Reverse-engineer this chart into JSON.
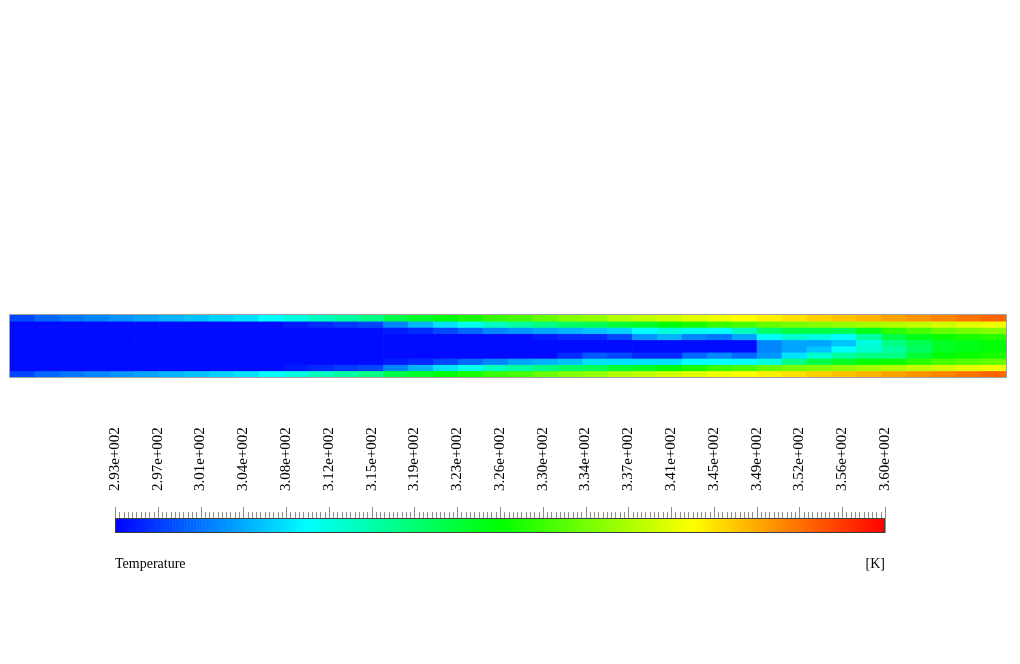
{
  "chart_data": {
    "type": "heatmap",
    "categories": [
      null,
      null,
      null,
      null,
      null,
      null,
      null,
      null,
      null,
      null,
      null,
      null,
      null,
      null,
      null,
      null,
      null,
      null,
      null,
      null,
      null,
      null,
      null,
      null,
      null,
      null,
      null,
      null,
      null,
      null,
      null,
      null,
      null,
      null,
      null,
      null,
      null,
      null,
      null,
      null
    ],
    "y_categories": [
      null,
      null,
      null,
      null,
      null,
      null,
      null,
      null,
      null,
      null
    ],
    "cells": [
      [
        298,
        300,
        301,
        302,
        303,
        304,
        305,
        306,
        307,
        308,
        310,
        312,
        314,
        316,
        318,
        322,
        324,
        326,
        328,
        330,
        331,
        333,
        335,
        336,
        338,
        339,
        340,
        341,
        342,
        343,
        344,
        345,
        346,
        347,
        348,
        349,
        350,
        351,
        352,
        353
      ],
      [
        294,
        294,
        294,
        294,
        294,
        294,
        294,
        294,
        294,
        294,
        294,
        295,
        296,
        297,
        298,
        302,
        305,
        308,
        311,
        314,
        316,
        318,
        320,
        321,
        323,
        324,
        326,
        328,
        330,
        331,
        333,
        334,
        335,
        336,
        337,
        338,
        339,
        340,
        341,
        342
      ],
      [
        294,
        294,
        294,
        294,
        294,
        294,
        294,
        294,
        294,
        294,
        294,
        294,
        294,
        294,
        294,
        295,
        296,
        298,
        300,
        302,
        303,
        304,
        305,
        306,
        307,
        310,
        312,
        311,
        310,
        314,
        320,
        322,
        322,
        321,
        325,
        329,
        331,
        333,
        334,
        335
      ],
      [
        294,
        294,
        294,
        294,
        294,
        294,
        294,
        294,
        294,
        294,
        294,
        294,
        294,
        294,
        294,
        294,
        294,
        294,
        294,
        294,
        294,
        295,
        296,
        296,
        298,
        303,
        305,
        302,
        301,
        304,
        310,
        313,
        312,
        310,
        316,
        322,
        325,
        327,
        328,
        329
      ],
      [
        294,
        294,
        294,
        294,
        294,
        294,
        294,
        294,
        294,
        294,
        294,
        294,
        294,
        294,
        294,
        294,
        294,
        294,
        294,
        294,
        294,
        294,
        294,
        294,
        294,
        294,
        294,
        294,
        294,
        294,
        302,
        304,
        304,
        306,
        312,
        318,
        321,
        324,
        325,
        326
      ],
      [
        294,
        294,
        294,
        294,
        294,
        294,
        294,
        294,
        294,
        294,
        294,
        294,
        294,
        294,
        294,
        294,
        294,
        294,
        294,
        294,
        294,
        294,
        294,
        294,
        294,
        294,
        294,
        294,
        294,
        294,
        302,
        304,
        306,
        310,
        313,
        316,
        320,
        324,
        325,
        326
      ],
      [
        294,
        294,
        294,
        294,
        294,
        294,
        294,
        294,
        294,
        294,
        294,
        294,
        294,
        294,
        294,
        294,
        294,
        294,
        294,
        294,
        294,
        294,
        296,
        299,
        298,
        296,
        296,
        300,
        302,
        300,
        303,
        308,
        313,
        316,
        318,
        318,
        323,
        326,
        327,
        328
      ],
      [
        294,
        294,
        294,
        294,
        294,
        294,
        294,
        294,
        294,
        294,
        294,
        294,
        294,
        294,
        294,
        295,
        296,
        298,
        300,
        302,
        304,
        305,
        306,
        308,
        308,
        308,
        308,
        310,
        310,
        310,
        312,
        318,
        322,
        324,
        326,
        327,
        329,
        331,
        332,
        333
      ],
      [
        294,
        294,
        294,
        294,
        294,
        294,
        294,
        294,
        294,
        294,
        294,
        295,
        296,
        297,
        298,
        302,
        305,
        308,
        311,
        314,
        316,
        318,
        320,
        321,
        323,
        324,
        326,
        328,
        330,
        331,
        333,
        334,
        335,
        336,
        337,
        338,
        339,
        340,
        341,
        342
      ],
      [
        298,
        300,
        301,
        302,
        303,
        304,
        305,
        306,
        307,
        308,
        310,
        312,
        314,
        316,
        318,
        322,
        324,
        326,
        328,
        330,
        331,
        333,
        335,
        336,
        338,
        339,
        340,
        341,
        342,
        343,
        344,
        345,
        346,
        347,
        348,
        349,
        350,
        351,
        352,
        353
      ]
    ],
    "clim": [
      293.3,
      359.54
    ],
    "cticks": [
      {
        "value": 293.3,
        "label": "2.93e+002"
      },
      {
        "value": 293.668,
        "label": null
      },
      {
        "value": 294.036,
        "label": null
      },
      {
        "value": 294.404,
        "label": null
      },
      {
        "value": 294.772,
        "label": null
      },
      {
        "value": 295.14,
        "label": null
      },
      {
        "value": 295.508,
        "label": null
      },
      {
        "value": 295.876,
        "label": null
      },
      {
        "value": 296.244,
        "label": null
      },
      {
        "value": 296.612,
        "label": null
      },
      {
        "value": 296.98,
        "label": "2.97e+002"
      },
      {
        "value": 297.348,
        "label": null
      },
      {
        "value": 297.716,
        "label": null
      },
      {
        "value": 298.084,
        "label": null
      },
      {
        "value": 298.452,
        "label": null
      },
      {
        "value": 298.82,
        "label": null
      },
      {
        "value": 299.188,
        "label": null
      },
      {
        "value": 299.556,
        "label": null
      },
      {
        "value": 299.924,
        "label": null
      },
      {
        "value": 300.292,
        "label": null
      },
      {
        "value": 300.66,
        "label": "3.01e+002"
      },
      {
        "value": 301.028,
        "label": null
      },
      {
        "value": 301.396,
        "label": null
      },
      {
        "value": 301.764,
        "label": null
      },
      {
        "value": 302.132,
        "label": null
      },
      {
        "value": 302.5,
        "label": null
      },
      {
        "value": 302.868,
        "label": null
      },
      {
        "value": 303.236,
        "label": null
      },
      {
        "value": 303.604,
        "label": null
      },
      {
        "value": 303.972,
        "label": null
      },
      {
        "value": 304.34,
        "label": "3.04e+002"
      },
      {
        "value": 304.708,
        "label": null
      },
      {
        "value": 305.076,
        "label": null
      },
      {
        "value": 305.444,
        "label": null
      },
      {
        "value": 305.812,
        "label": null
      },
      {
        "value": 306.18,
        "label": null
      },
      {
        "value": 306.548,
        "label": null
      },
      {
        "value": 306.916,
        "label": null
      },
      {
        "value": 307.284,
        "label": null
      },
      {
        "value": 307.652,
        "label": null
      },
      {
        "value": 308.02,
        "label": "3.08e+002"
      },
      {
        "value": 308.388,
        "label": null
      },
      {
        "value": 308.756,
        "label": null
      },
      {
        "value": 309.124,
        "label": null
      },
      {
        "value": 309.492,
        "label": null
      },
      {
        "value": 309.86,
        "label": null
      },
      {
        "value": 310.228,
        "label": null
      },
      {
        "value": 310.596,
        "label": null
      },
      {
        "value": 310.964,
        "label": null
      },
      {
        "value": 311.332,
        "label": null
      },
      {
        "value": 311.7,
        "label": "3.12e+002"
      },
      {
        "value": 312.068,
        "label": null
      },
      {
        "value": 312.436,
        "label": null
      },
      {
        "value": 312.804,
        "label": null
      },
      {
        "value": 313.172,
        "label": null
      },
      {
        "value": 313.54,
        "label": null
      },
      {
        "value": 313.908,
        "label": null
      },
      {
        "value": 314.276,
        "label": null
      },
      {
        "value": 314.644,
        "label": null
      },
      {
        "value": 315.012,
        "label": null
      },
      {
        "value": 315.38,
        "label": "3.15e+002"
      },
      {
        "value": 315.748,
        "label": null
      },
      {
        "value": 316.116,
        "label": null
      },
      {
        "value": 316.484,
        "label": null
      },
      {
        "value": 316.852,
        "label": null
      },
      {
        "value": 317.22,
        "label": null
      },
      {
        "value": 317.588,
        "label": null
      },
      {
        "value": 317.956,
        "label": null
      },
      {
        "value": 318.324,
        "label": null
      },
      {
        "value": 318.692,
        "label": null
      },
      {
        "value": 319.06,
        "label": "3.19e+002"
      },
      {
        "value": 319.428,
        "label": null
      },
      {
        "value": 319.796,
        "label": null
      },
      {
        "value": 320.164,
        "label": null
      },
      {
        "value": 320.532,
        "label": null
      },
      {
        "value": 320.9,
        "label": null
      },
      {
        "value": 321.268,
        "label": null
      },
      {
        "value": 321.636,
        "label": null
      },
      {
        "value": 322.004,
        "label": null
      },
      {
        "value": 322.372,
        "label": null
      },
      {
        "value": 322.74,
        "label": "3.23e+002"
      },
      {
        "value": 323.108,
        "label": null
      },
      {
        "value": 323.476,
        "label": null
      },
      {
        "value": 323.844,
        "label": null
      },
      {
        "value": 324.212,
        "label": null
      },
      {
        "value": 324.58,
        "label": null
      },
      {
        "value": 324.948,
        "label": null
      },
      {
        "value": 325.316,
        "label": null
      },
      {
        "value": 325.684,
        "label": null
      },
      {
        "value": 326.052,
        "label": null
      },
      {
        "value": 326.42,
        "label": "3.26e+002"
      },
      {
        "value": 326.788,
        "label": null
      },
      {
        "value": 327.156,
        "label": null
      },
      {
        "value": 327.524,
        "label": null
      },
      {
        "value": 327.892,
        "label": null
      },
      {
        "value": 328.26,
        "label": null
      },
      {
        "value": 328.628,
        "label": null
      },
      {
        "value": 328.996,
        "label": null
      },
      {
        "value": 329.364,
        "label": null
      },
      {
        "value": 329.732,
        "label": null
      },
      {
        "value": 330.1,
        "label": "3.30e+002"
      },
      {
        "value": 330.468,
        "label": null
      },
      {
        "value": 330.836,
        "label": null
      },
      {
        "value": 331.204,
        "label": null
      },
      {
        "value": 331.572,
        "label": null
      },
      {
        "value": 331.94,
        "label": null
      },
      {
        "value": 332.308,
        "label": null
      },
      {
        "value": 332.676,
        "label": null
      },
      {
        "value": 333.044,
        "label": null
      },
      {
        "value": 333.412,
        "label": null
      },
      {
        "value": 333.78,
        "label": "3.34e+002"
      },
      {
        "value": 334.148,
        "label": null
      },
      {
        "value": 334.516,
        "label": null
      },
      {
        "value": 334.884,
        "label": null
      },
      {
        "value": 335.252,
        "label": null
      },
      {
        "value": 335.62,
        "label": null
      },
      {
        "value": 335.988,
        "label": null
      },
      {
        "value": 336.356,
        "label": null
      },
      {
        "value": 336.724,
        "label": null
      },
      {
        "value": 337.092,
        "label": null
      },
      {
        "value": 337.46,
        "label": "3.37e+002"
      },
      {
        "value": 337.828,
        "label": null
      },
      {
        "value": 338.196,
        "label": null
      },
      {
        "value": 338.564,
        "label": null
      },
      {
        "value": 338.932,
        "label": null
      },
      {
        "value": 339.3,
        "label": null
      },
      {
        "value": 339.668,
        "label": null
      },
      {
        "value": 340.036,
        "label": null
      },
      {
        "value": 340.404,
        "label": null
      },
      {
        "value": 340.772,
        "label": null
      },
      {
        "value": 341.14,
        "label": "3.41e+002"
      },
      {
        "value": 341.508,
        "label": null
      },
      {
        "value": 341.876,
        "label": null
      },
      {
        "value": 342.244,
        "label": null
      },
      {
        "value": 342.612,
        "label": null
      },
      {
        "value": 342.98,
        "label": null
      },
      {
        "value": 343.348,
        "label": null
      },
      {
        "value": 343.716,
        "label": null
      },
      {
        "value": 344.084,
        "label": null
      },
      {
        "value": 344.452,
        "label": null
      },
      {
        "value": 344.82,
        "label": "3.45e+002"
      },
      {
        "value": 345.188,
        "label": null
      },
      {
        "value": 345.556,
        "label": null
      },
      {
        "value": 345.924,
        "label": null
      },
      {
        "value": 346.292,
        "label": null
      },
      {
        "value": 346.66,
        "label": null
      },
      {
        "value": 347.028,
        "label": null
      },
      {
        "value": 347.396,
        "label": null
      },
      {
        "value": 347.764,
        "label": null
      },
      {
        "value": 348.132,
        "label": null
      },
      {
        "value": 348.5,
        "label": "3.49e+002"
      },
      {
        "value": 348.868,
        "label": null
      },
      {
        "value": 349.236,
        "label": null
      },
      {
        "value": 349.604,
        "label": null
      },
      {
        "value": 349.972,
        "label": null
      },
      {
        "value": 350.34,
        "label": null
      },
      {
        "value": 350.708,
        "label": null
      },
      {
        "value": 351.076,
        "label": null
      },
      {
        "value": 351.444,
        "label": null
      },
      {
        "value": 351.812,
        "label": null
      },
      {
        "value": 352.18,
        "label": "3.52e+002"
      },
      {
        "value": 352.548,
        "label": null
      },
      {
        "value": 352.916,
        "label": null
      },
      {
        "value": 353.284,
        "label": null
      },
      {
        "value": 353.652,
        "label": null
      },
      {
        "value": 354.02,
        "label": null
      },
      {
        "value": 354.388,
        "label": null
      },
      {
        "value": 354.756,
        "label": null
      },
      {
        "value": 355.124,
        "label": null
      },
      {
        "value": 355.492,
        "label": null
      },
      {
        "value": 355.86,
        "label": "3.56e+002"
      },
      {
        "value": 356.228,
        "label": null
      },
      {
        "value": 356.596,
        "label": null
      },
      {
        "value": 356.964,
        "label": null
      },
      {
        "value": 357.332,
        "label": null
      },
      {
        "value": 357.7,
        "label": null
      },
      {
        "value": 358.068,
        "label": null
      },
      {
        "value": 358.436,
        "label": null
      },
      {
        "value": 358.804,
        "label": null
      },
      {
        "value": 359.172,
        "label": null
      },
      {
        "value": 359.54,
        "label": "3.60e+002"
      }
    ],
    "clabel": "Temperature",
    "annotations": [
      "[K]"
    ],
    "tick_labels": false
  }
}
